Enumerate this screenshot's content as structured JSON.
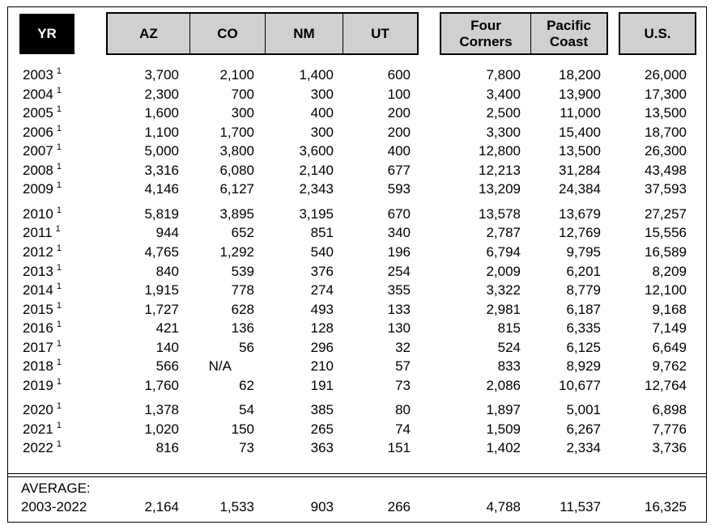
{
  "header": {
    "year": "YR",
    "states": [
      "AZ",
      "CO",
      "NM",
      "UT"
    ],
    "regions": [
      [
        "Four",
        "Corners"
      ],
      [
        "Pacific",
        "Coast"
      ]
    ],
    "us": "U.S."
  },
  "footnote_mark": "1",
  "rows": [
    {
      "yr": "2003",
      "az": "3,700",
      "co": "2,100",
      "nm": "1,400",
      "ut": "600",
      "fc": "7,800",
      "pc": "18,200",
      "us": "26,000"
    },
    {
      "yr": "2004",
      "az": "2,300",
      "co": "700",
      "nm": "300",
      "ut": "100",
      "fc": "3,400",
      "pc": "13,900",
      "us": "17,300"
    },
    {
      "yr": "2005",
      "az": "1,600",
      "co": "300",
      "nm": "400",
      "ut": "200",
      "fc": "2,500",
      "pc": "11,000",
      "us": "13,500"
    },
    {
      "yr": "2006",
      "az": "1,100",
      "co": "1,700",
      "nm": "300",
      "ut": "200",
      "fc": "3,300",
      "pc": "15,400",
      "us": "18,700"
    },
    {
      "yr": "2007",
      "az": "5,000",
      "co": "3,800",
      "nm": "3,600",
      "ut": "400",
      "fc": "12,800",
      "pc": "13,500",
      "us": "26,300"
    },
    {
      "yr": "2008",
      "az": "3,316",
      "co": "6,080",
      "nm": "2,140",
      "ut": "677",
      "fc": "12,213",
      "pc": "31,284",
      "us": "43,498"
    },
    {
      "yr": "2009",
      "az": "4,146",
      "co": "6,127",
      "nm": "2,343",
      "ut": "593",
      "fc": "13,209",
      "pc": "24,384",
      "us": "37,593"
    },
    {
      "yr": "2010",
      "az": "5,819",
      "co": "3,895",
      "nm": "3,195",
      "ut": "670",
      "fc": "13,578",
      "pc": "13,679",
      "us": "27,257"
    },
    {
      "yr": "2011",
      "az": "944",
      "co": "652",
      "nm": "851",
      "ut": "340",
      "fc": "2,787",
      "pc": "12,769",
      "us": "15,556"
    },
    {
      "yr": "2012",
      "az": "4,765",
      "co": "1,292",
      "nm": "540",
      "ut": "196",
      "fc": "6,794",
      "pc": "9,795",
      "us": "16,589"
    },
    {
      "yr": "2013",
      "az": "840",
      "co": "539",
      "nm": "376",
      "ut": "254",
      "fc": "2,009",
      "pc": "6,201",
      "us": "8,209"
    },
    {
      "yr": "2014",
      "az": "1,915",
      "co": "778",
      "nm": "274",
      "ut": "355",
      "fc": "3,322",
      "pc": "8,779",
      "us": "12,100"
    },
    {
      "yr": "2015",
      "az": "1,727",
      "co": "628",
      "nm": "493",
      "ut": "133",
      "fc": "2,981",
      "pc": "6,187",
      "us": "9,168"
    },
    {
      "yr": "2016",
      "az": "421",
      "co": "136",
      "nm": "128",
      "ut": "130",
      "fc": "815",
      "pc": "6,335",
      "us": "7,149"
    },
    {
      "yr": "2017",
      "az": "140",
      "co": "56",
      "nm": "296",
      "ut": "32",
      "fc": "524",
      "pc": "6,125",
      "us": "6,649"
    },
    {
      "yr": "2018",
      "az": "566",
      "co": "N/A",
      "nm": "210",
      "ut": "57",
      "fc": "833",
      "pc": "8,929",
      "us": "9,762"
    },
    {
      "yr": "2019",
      "az": "1,760",
      "co": "62",
      "nm": "191",
      "ut": "73",
      "fc": "2,086",
      "pc": "10,677",
      "us": "12,764"
    },
    {
      "yr": "2020",
      "az": "1,378",
      "co": "54",
      "nm": "385",
      "ut": "80",
      "fc": "1,897",
      "pc": "5,001",
      "us": "6,898"
    },
    {
      "yr": "2021",
      "az": "1,020",
      "co": "150",
      "nm": "265",
      "ut": "74",
      "fc": "1,509",
      "pc": "6,267",
      "us": "7,776"
    },
    {
      "yr": "2022",
      "az": "816",
      "co": "73",
      "nm": "363",
      "ut": "151",
      "fc": "1,402",
      "pc": "2,334",
      "us": "3,736"
    }
  ],
  "average": {
    "label": "AVERAGE:",
    "range": "2003-2022",
    "az": "2,164",
    "co": "1,533",
    "nm": "903",
    "ut": "266",
    "fc": "4,788",
    "pc": "11,537",
    "us": "16,325"
  }
}
